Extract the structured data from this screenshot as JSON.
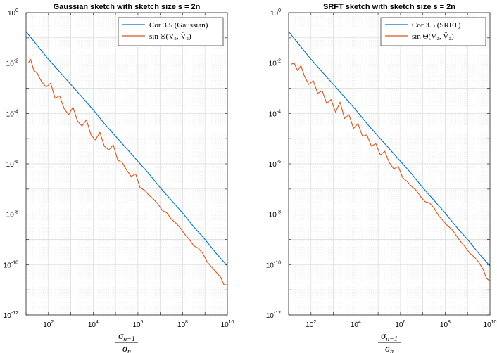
{
  "chart_data": [
    {
      "type": "line",
      "title": "Gaussian sketch with sketch size s = 2n",
      "xlabel_num": "σ",
      "xlabel_num_sub": "n−1",
      "xlabel_den": "σ",
      "xlabel_den_sub": "n",
      "xscale": "log",
      "yscale": "log",
      "xlim_exp": [
        1,
        10
      ],
      "ylim_exp": [
        -12,
        0
      ],
      "x_tick_exponents": [
        2,
        4,
        6,
        8,
        10
      ],
      "y_tick_exponents": [
        -12,
        -10,
        -8,
        -6,
        -4,
        -2,
        0
      ],
      "grid": true,
      "legend_position": "top-right",
      "series": [
        {
          "name": "Cor 3.5 (Gaussian)",
          "color": "#0072BD",
          "x_log10": [
            1.0,
            1.5,
            2.0,
            2.5,
            3.0,
            3.5,
            4.0,
            4.5,
            5.0,
            5.5,
            6.0,
            6.5,
            7.0,
            7.5,
            8.0,
            8.5,
            9.0,
            9.5,
            10.0
          ],
          "y_log10": [
            -0.75,
            -1.3,
            -1.85,
            -2.35,
            -2.85,
            -3.35,
            -3.85,
            -4.4,
            -4.9,
            -5.4,
            -5.9,
            -6.4,
            -6.95,
            -7.45,
            -7.95,
            -8.5,
            -9.0,
            -9.55,
            -10.05
          ]
        },
        {
          "name": "sin Θ(V₂, V̂₂)",
          "color": "#D95319",
          "x_log10": [
            1.1,
            1.2,
            1.35,
            1.5,
            1.7,
            1.9,
            2.1,
            2.3,
            2.5,
            2.7,
            2.9,
            3.1,
            3.3,
            3.5,
            3.7,
            3.9,
            4.1,
            4.3,
            4.5,
            4.7,
            4.9,
            5.1,
            5.3,
            5.5,
            5.7,
            5.9,
            6.1,
            6.3,
            6.5,
            6.7,
            6.9,
            7.1,
            7.3,
            7.5,
            7.7,
            7.9,
            8.1,
            8.3,
            8.5,
            8.7,
            8.9,
            9.1,
            9.3,
            9.5,
            9.7,
            9.85,
            10.0
          ],
          "y_log10": [
            -2.0,
            -1.85,
            -2.3,
            -2.4,
            -2.75,
            -2.95,
            -2.8,
            -3.4,
            -3.3,
            -3.8,
            -4.05,
            -3.75,
            -4.3,
            -4.5,
            -4.25,
            -4.85,
            -5.05,
            -4.75,
            -5.3,
            -5.45,
            -5.25,
            -5.85,
            -5.95,
            -6.25,
            -6.5,
            -6.4,
            -6.95,
            -7.05,
            -7.25,
            -7.4,
            -7.6,
            -7.85,
            -7.95,
            -8.2,
            -8.35,
            -8.55,
            -8.8,
            -9.0,
            -9.25,
            -9.35,
            -9.55,
            -9.9,
            -10.1,
            -10.3,
            -10.5,
            -10.8,
            -10.8
          ]
        }
      ]
    },
    {
      "type": "line",
      "title": "SRFT sketch with sketch size s = 2n",
      "xlabel_num": "σ",
      "xlabel_num_sub": "n−1",
      "xlabel_den": "σ",
      "xlabel_den_sub": "n",
      "xscale": "log",
      "yscale": "log",
      "xlim_exp": [
        1,
        10
      ],
      "ylim_exp": [
        -12,
        0
      ],
      "x_tick_exponents": [
        2,
        4,
        6,
        8,
        10
      ],
      "y_tick_exponents": [
        -12,
        -10,
        -8,
        -6,
        -4,
        -2,
        0
      ],
      "grid": true,
      "legend_position": "top-right",
      "series": [
        {
          "name": "Cor 3.5 (SRFT)",
          "color": "#0072BD",
          "x_log10": [
            1.0,
            1.5,
            2.0,
            2.5,
            3.0,
            3.5,
            4.0,
            4.5,
            5.0,
            5.5,
            6.0,
            6.5,
            7.0,
            7.5,
            8.0,
            8.5,
            9.0,
            9.5,
            10.0
          ],
          "y_log10": [
            -0.75,
            -1.3,
            -1.85,
            -2.35,
            -2.85,
            -3.35,
            -3.85,
            -4.4,
            -4.9,
            -5.4,
            -5.9,
            -6.4,
            -6.95,
            -7.45,
            -7.95,
            -8.5,
            -9.0,
            -9.55,
            -10.05
          ]
        },
        {
          "name": "sin Θ(V₂, V̂₂)",
          "color": "#D95319",
          "x_log10": [
            1.1,
            1.25,
            1.4,
            1.55,
            1.7,
            1.9,
            2.1,
            2.3,
            2.5,
            2.7,
            2.9,
            3.1,
            3.3,
            3.5,
            3.7,
            3.9,
            4.1,
            4.3,
            4.5,
            4.7,
            4.9,
            5.1,
            5.3,
            5.5,
            5.7,
            5.9,
            6.1,
            6.3,
            6.5,
            6.7,
            6.9,
            7.1,
            7.3,
            7.5,
            7.7,
            7.9,
            8.1,
            8.3,
            8.5,
            8.7,
            8.9,
            9.1,
            9.3,
            9.5,
            9.7,
            9.85,
            10.0
          ],
          "y_log10": [
            -2.05,
            -2.0,
            -2.3,
            -2.1,
            -2.5,
            -2.85,
            -2.7,
            -3.2,
            -3.1,
            -3.6,
            -3.45,
            -3.95,
            -3.55,
            -4.2,
            -4.05,
            -4.6,
            -4.4,
            -4.9,
            -4.85,
            -5.3,
            -5.2,
            -5.65,
            -5.5,
            -5.95,
            -6.2,
            -6.1,
            -6.55,
            -6.7,
            -6.9,
            -7.05,
            -7.3,
            -7.5,
            -7.55,
            -7.75,
            -8.05,
            -8.25,
            -8.45,
            -8.6,
            -8.85,
            -9.1,
            -9.3,
            -9.55,
            -9.7,
            -9.9,
            -10.2,
            -10.55,
            -10.65
          ]
        }
      ]
    }
  ]
}
